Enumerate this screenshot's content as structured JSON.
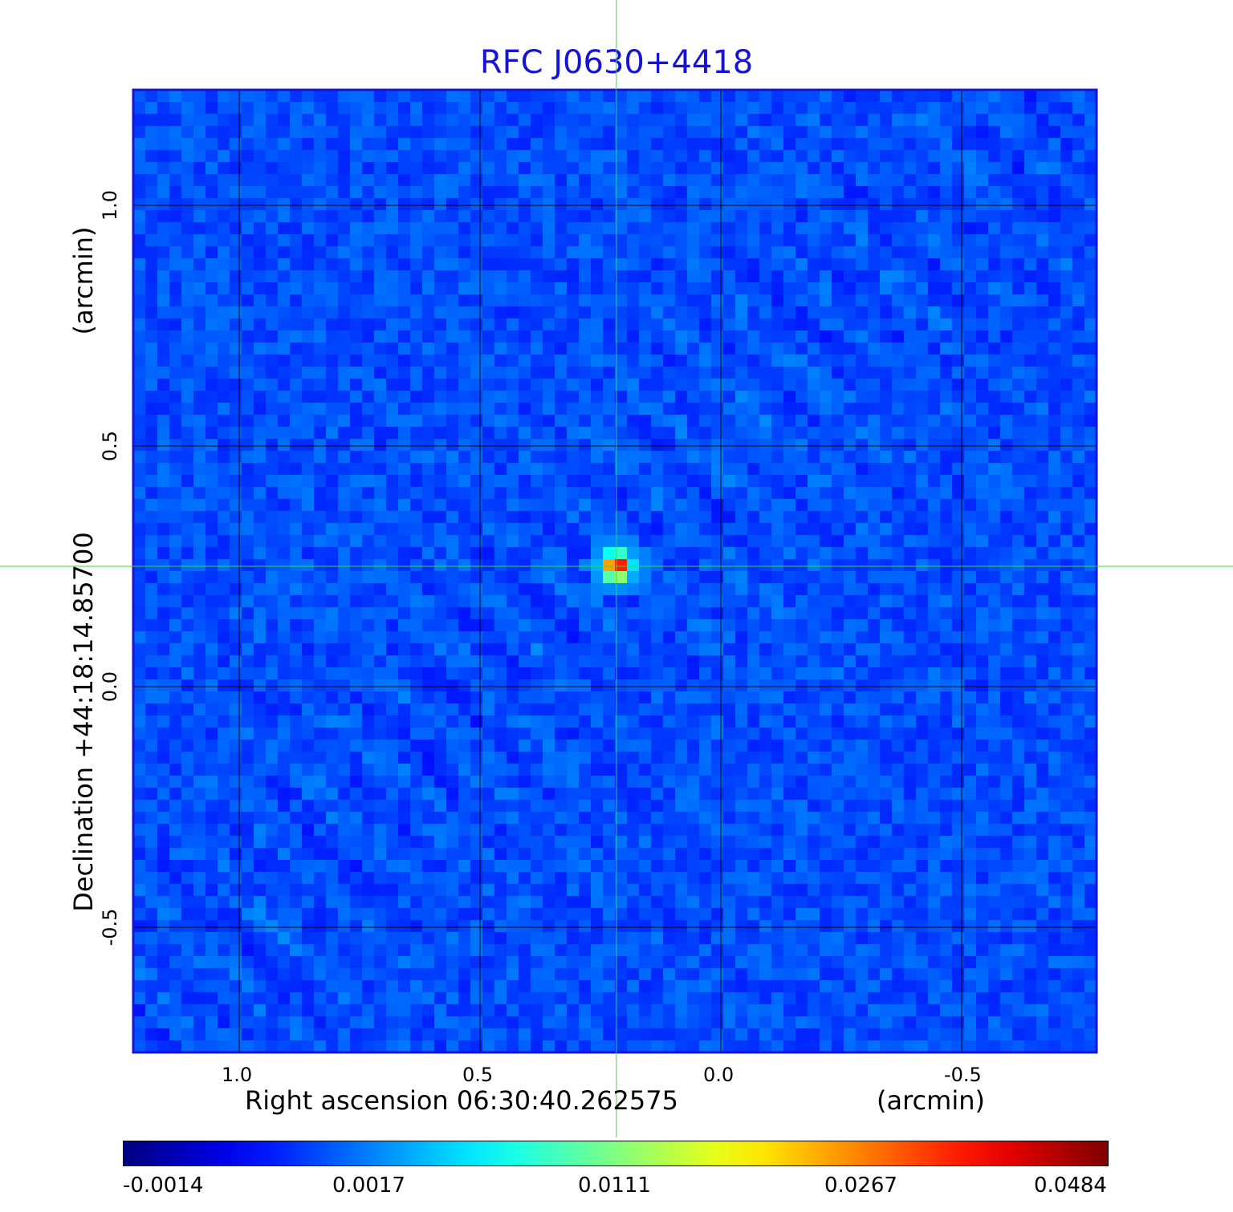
{
  "chart_data": {
    "type": "heatmap",
    "title": "RFC J0630+4418",
    "xlabel": "Right ascension  06:30:40.262575",
    "xlabel_unit": "(arcmin)",
    "ylabel": "Declination  +44:18:14.85700",
    "ylabel_unit": "(arcmin)",
    "x_ticks": [
      {
        "value": 1.0,
        "label": "1.0"
      },
      {
        "value": 0.5,
        "label": "0.5"
      },
      {
        "value": 0.0,
        "label": "0.0"
      },
      {
        "value": -0.5,
        "label": "-0.5"
      }
    ],
    "y_ticks": [
      {
        "value": 1.0,
        "label": "1.0"
      },
      {
        "value": 0.5,
        "label": "0.5"
      },
      {
        "value": 0.0,
        "label": "0.0"
      },
      {
        "value": -0.5,
        "label": "-0.5"
      }
    ],
    "xlim": [
      1.22,
      -0.78
    ],
    "ylim": [
      -0.76,
      1.24
    ],
    "grid": true,
    "crosshair": {
      "x": 0.217,
      "y": 0.25,
      "color": "#33dd33"
    },
    "source": {
      "x": 0.217,
      "y": 0.25,
      "peak": 0.0484
    },
    "colorbar": {
      "colormap": "jet",
      "ticks": [
        "-0.0014",
        "0.0017",
        "0.0111",
        "0.0267",
        "0.0484"
      ]
    },
    "colors": {
      "title": "#1414d2",
      "frame": "#1414d2",
      "background_level": "#1e6ef0"
    }
  }
}
